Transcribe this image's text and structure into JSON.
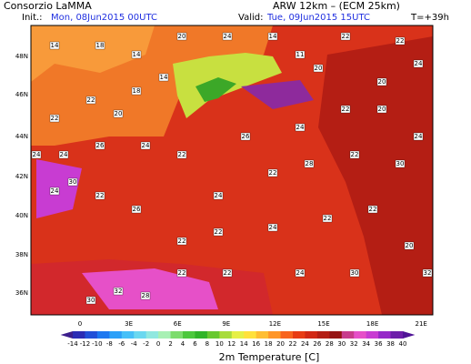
{
  "header": {
    "source": "Consorzio LaMMA",
    "model": "ARW 12km – (ECM 25km)",
    "init_label": "Init.:",
    "init": "Mon, 08Jun2015 00UTC",
    "valid_label": "Valid:",
    "valid": "Tue, 09Jun2015 15UTC",
    "lead": "T=+39h"
  },
  "map": {
    "lat_labels": [
      "48N",
      "46N",
      "44N",
      "42N",
      "40N",
      "38N",
      "36N"
    ],
    "lon_labels": [
      "0",
      "3E",
      "6E",
      "9E",
      "12E",
      "15E",
      "18E",
      "21E"
    ],
    "stations": [
      14,
      18,
      14,
      20,
      24,
      14,
      11,
      20,
      22,
      22,
      24,
      20,
      14,
      18,
      22,
      20,
      22,
      24,
      24,
      26,
      24,
      22,
      30,
      24,
      22,
      26,
      24,
      22,
      28,
      22,
      30,
      24,
      20,
      22,
      24,
      26,
      22,
      22,
      32,
      30,
      28,
      24,
      22,
      22,
      20,
      32,
      30,
      24,
      22,
      22
    ]
  },
  "colorbar": {
    "title": "2m Temperature [C]",
    "ticks": [
      -14,
      -12,
      -10,
      -8,
      -6,
      -4,
      -2,
      0,
      2,
      4,
      6,
      8,
      10,
      12,
      14,
      16,
      18,
      20,
      22,
      24,
      26,
      28,
      30,
      32,
      34,
      36,
      38,
      40
    ],
    "colors": [
      "#3c1e8c",
      "#2c2cb4",
      "#2250d8",
      "#1e78f0",
      "#2ca0f8",
      "#46c0f8",
      "#6ad8f0",
      "#90e8e0",
      "#a8f0b4",
      "#7cdc6c",
      "#4cc83c",
      "#30b428",
      "#68c830",
      "#a8dc3c",
      "#e6f046",
      "#ffe13c",
      "#ffbe32",
      "#ff9628",
      "#f8641e",
      "#e83c14",
      "#d22814",
      "#b41e14",
      "#961414",
      "#c83c8c",
      "#e650c8",
      "#c83cd2",
      "#9628c8",
      "#6e1eaa",
      "#501496"
    ]
  }
}
